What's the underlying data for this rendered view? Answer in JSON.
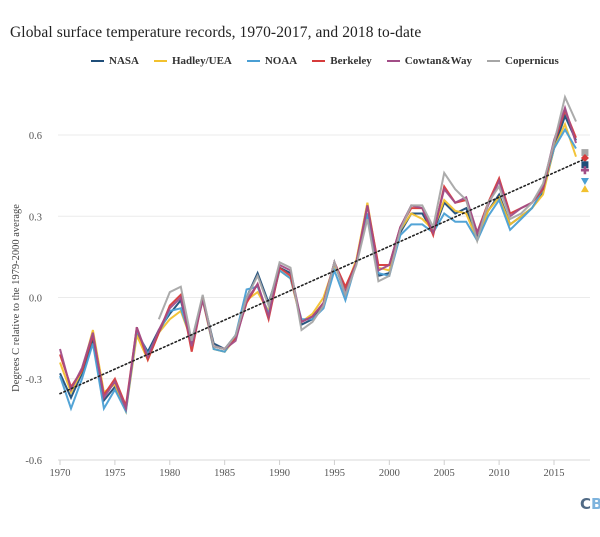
{
  "chart_data": {
    "type": "line",
    "title": "Global surface temperature records, 1970-2017, and 2018 to-date",
    "xlabel": "",
    "ylabel": "Degrees C relative to the 1979-2000 average",
    "ylim": [
      -0.6,
      0.7
    ],
    "xlim": [
      1969.5,
      2018.6
    ],
    "yticks": [
      0.6,
      0.3,
      0.0,
      -0.3,
      -0.6
    ],
    "ytick_labels": [
      "0.6",
      "0.3",
      "0.0",
      "-0.3",
      "-0.6"
    ],
    "xticks": [
      1970,
      1975,
      1980,
      1985,
      1990,
      1995,
      2000,
      2005,
      2010,
      2015
    ],
    "xtick_labels": [
      "1970",
      "1975",
      "1980",
      "1985",
      "1990",
      "1995",
      "2000",
      "2005",
      "2010",
      "2015"
    ],
    "grid": true,
    "legend_position": "top",
    "x": [
      1970,
      1971,
      1972,
      1973,
      1974,
      1975,
      1976,
      1977,
      1978,
      1979,
      1980,
      1981,
      1982,
      1983,
      1984,
      1985,
      1986,
      1987,
      1988,
      1989,
      1990,
      1991,
      1992,
      1993,
      1994,
      1995,
      1996,
      1997,
      1998,
      1999,
      2000,
      2001,
      2002,
      2003,
      2004,
      2005,
      2006,
      2007,
      2008,
      2009,
      2010,
      2011,
      2012,
      2013,
      2014,
      2015,
      2016,
      2017
    ],
    "series": [
      {
        "name": "NASA",
        "color": "#1f4e79",
        "values": [
          -0.28,
          -0.37,
          -0.28,
          -0.16,
          -0.38,
          -0.33,
          -0.41,
          -0.13,
          -0.2,
          -0.12,
          -0.06,
          -0.01,
          -0.17,
          0.0,
          -0.17,
          -0.19,
          -0.14,
          0.0,
          0.09,
          -0.02,
          0.11,
          0.09,
          -0.1,
          -0.08,
          -0.03,
          0.13,
          0.01,
          0.13,
          0.31,
          0.08,
          0.09,
          0.24,
          0.31,
          0.31,
          0.24,
          0.35,
          0.31,
          0.33,
          0.22,
          0.32,
          0.38,
          0.27,
          0.3,
          0.33,
          0.39,
          0.55,
          0.67,
          0.58
        ]
      },
      {
        "name": "Hadley/UEA",
        "color": "#f2c12e",
        "values": [
          -0.24,
          -0.35,
          -0.27,
          -0.12,
          -0.35,
          -0.32,
          -0.42,
          -0.14,
          -0.23,
          -0.13,
          -0.08,
          -0.05,
          -0.16,
          -0.01,
          -0.19,
          -0.2,
          -0.15,
          -0.01,
          0.02,
          -0.05,
          0.1,
          0.07,
          -0.09,
          -0.06,
          0.0,
          0.12,
          0.03,
          0.14,
          0.35,
          0.11,
          0.1,
          0.25,
          0.31,
          0.29,
          0.25,
          0.36,
          0.32,
          0.31,
          0.21,
          0.32,
          0.37,
          0.27,
          0.3,
          0.33,
          0.38,
          0.55,
          0.64,
          0.52
        ]
      },
      {
        "name": "NOAA",
        "color": "#4a9fd4",
        "values": [
          -0.29,
          -0.41,
          -0.3,
          -0.17,
          -0.41,
          -0.34,
          -0.42,
          -0.12,
          -0.21,
          -0.13,
          -0.05,
          -0.04,
          -0.16,
          0.0,
          -0.19,
          -0.2,
          -0.14,
          0.03,
          0.04,
          -0.06,
          0.1,
          0.07,
          -0.08,
          -0.08,
          -0.04,
          0.1,
          -0.01,
          0.13,
          0.31,
          0.09,
          0.08,
          0.23,
          0.27,
          0.27,
          0.24,
          0.31,
          0.28,
          0.28,
          0.21,
          0.3,
          0.36,
          0.25,
          0.29,
          0.33,
          0.4,
          0.55,
          0.62,
          0.55
        ]
      },
      {
        "name": "Berkeley",
        "color": "#d63b3b",
        "values": [
          -0.21,
          -0.33,
          -0.27,
          -0.14,
          -0.36,
          -0.3,
          -0.4,
          -0.11,
          -0.23,
          -0.13,
          -0.03,
          0.01,
          -0.2,
          0.0,
          -0.18,
          -0.19,
          -0.15,
          -0.02,
          0.05,
          -0.08,
          0.11,
          0.08,
          -0.09,
          -0.07,
          -0.02,
          0.13,
          0.04,
          0.13,
          0.34,
          0.12,
          0.12,
          0.26,
          0.33,
          0.33,
          0.23,
          0.41,
          0.35,
          0.36,
          0.24,
          0.35,
          0.44,
          0.31,
          0.33,
          0.35,
          0.4,
          0.57,
          0.69,
          0.59
        ]
      },
      {
        "name": "Cowtan&Way",
        "color": "#a24d87",
        "values": [
          -0.19,
          -0.34,
          -0.26,
          -0.13,
          -0.37,
          -0.31,
          -0.41,
          -0.11,
          -0.22,
          -0.12,
          -0.04,
          0.0,
          -0.18,
          -0.01,
          -0.18,
          -0.19,
          -0.16,
          -0.01,
          0.05,
          -0.07,
          0.12,
          0.1,
          -0.09,
          -0.07,
          -0.02,
          0.13,
          0.02,
          0.13,
          0.34,
          0.1,
          0.12,
          0.26,
          0.34,
          0.33,
          0.24,
          0.4,
          0.35,
          0.37,
          0.24,
          0.34,
          0.43,
          0.3,
          0.33,
          0.35,
          0.41,
          0.58,
          0.7,
          0.57
        ]
      },
      {
        "name": "Copernicus",
        "color": "#a6a6a6",
        "values": [
          null,
          null,
          null,
          null,
          null,
          null,
          null,
          null,
          null,
          -0.08,
          0.02,
          0.04,
          -0.16,
          0.01,
          -0.18,
          -0.19,
          -0.14,
          0.0,
          0.08,
          -0.03,
          0.13,
          0.11,
          -0.12,
          -0.09,
          -0.03,
          0.13,
          0.01,
          0.12,
          0.29,
          0.06,
          0.08,
          0.25,
          0.34,
          0.34,
          0.26,
          0.46,
          0.4,
          0.36,
          0.21,
          0.35,
          0.41,
          0.29,
          0.31,
          0.35,
          0.42,
          0.57,
          0.74,
          0.65
        ]
      }
    ],
    "trend": {
      "name": "Linear trend",
      "style": "dotted",
      "color": "#222222",
      "start": {
        "x": 1970,
        "y": -0.355
      },
      "end": {
        "x": 2018,
        "y": 0.515
      }
    },
    "markers_2018_to_date": [
      {
        "series": "Copernicus",
        "value": 0.535,
        "shape": "square",
        "color": "#a6a6a6"
      },
      {
        "series": "Berkeley",
        "value": 0.515,
        "shape": "diamond",
        "color": "#d63b3b"
      },
      {
        "series": "NASA",
        "value": 0.49,
        "shape": "square",
        "color": "#1f4e79"
      },
      {
        "series": "Cowtan&Way",
        "value": 0.47,
        "shape": "plus",
        "color": "#a24d87"
      },
      {
        "series": "NOAA",
        "value": 0.43,
        "shape": "triangle-down",
        "color": "#4a9fd4"
      },
      {
        "series": "Hadley/UEA",
        "value": 0.4,
        "shape": "triangle-up",
        "color": "#f2c12e"
      }
    ]
  },
  "branding": {
    "logo_c": "C",
    "logo_b": "B",
    "logo_c_color": "#506a85",
    "logo_b_color": "#7db3dd"
  }
}
